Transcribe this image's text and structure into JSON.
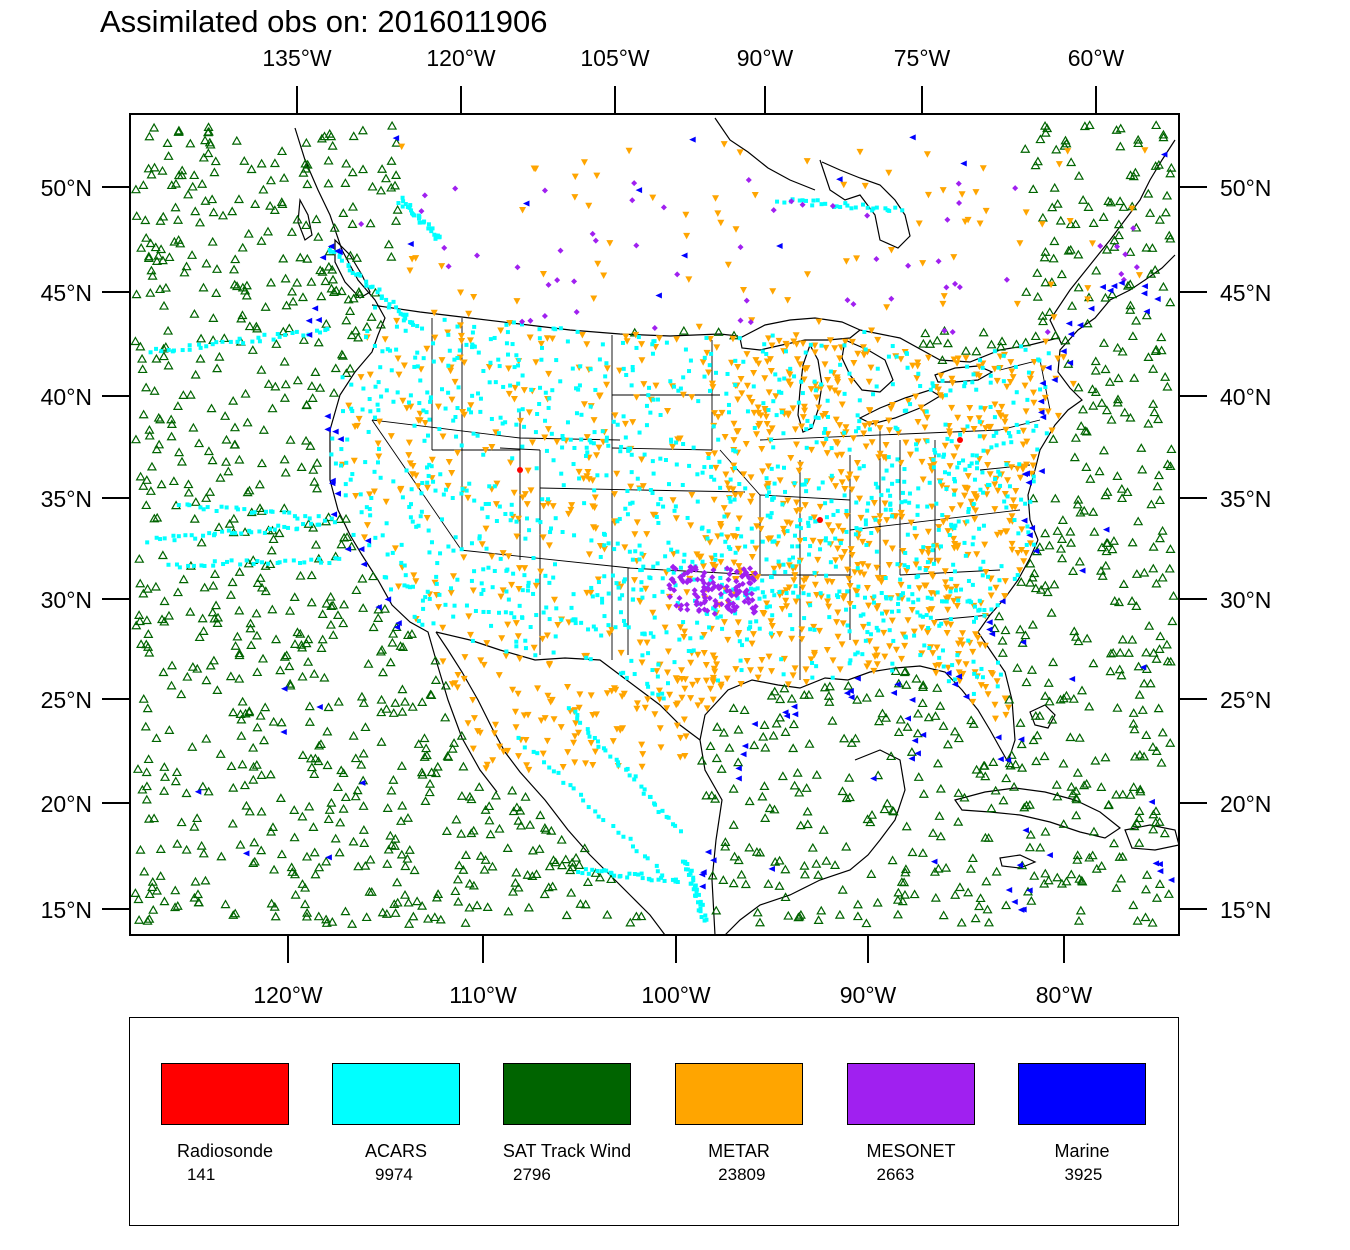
{
  "title": "Assimilated obs on: 2016011906",
  "top_axis_labels": [
    "135°W",
    "120°W",
    "105°W",
    "90°W",
    "75°W",
    "60°W"
  ],
  "bottom_axis_labels": [
    "120°W",
    "110°W",
    "100°W",
    "90°W",
    "80°W"
  ],
  "left_axis_labels": [
    "50°N",
    "45°N",
    "40°N",
    "35°N",
    "30°N",
    "25°N",
    "20°N",
    "15°N"
  ],
  "right_axis_labels": [
    "50°N",
    "45°N",
    "40°N",
    "35°N",
    "30°N",
    "25°N",
    "20°N",
    "15°N"
  ],
  "legend": [
    {
      "name": "Radiosonde",
      "count": "141",
      "color": "#ff0000",
      "symbol": "circle"
    },
    {
      "name": "ACARS",
      "count": "9974",
      "color": "#00ffff",
      "symbol": "square"
    },
    {
      "name": "SAT Track Wind",
      "count": "2796",
      "color": "#006400",
      "symbol": "triangle-open"
    },
    {
      "name": "METAR",
      "count": "23809",
      "color": "#ffa500",
      "symbol": "triangle-down"
    },
    {
      "name": "MESONET",
      "count": "2663",
      "color": "#a020f0",
      "symbol": "diamond"
    },
    {
      "name": "Marine",
      "count": "3925",
      "color": "#0000ff",
      "symbol": "triangle-left"
    }
  ]
}
